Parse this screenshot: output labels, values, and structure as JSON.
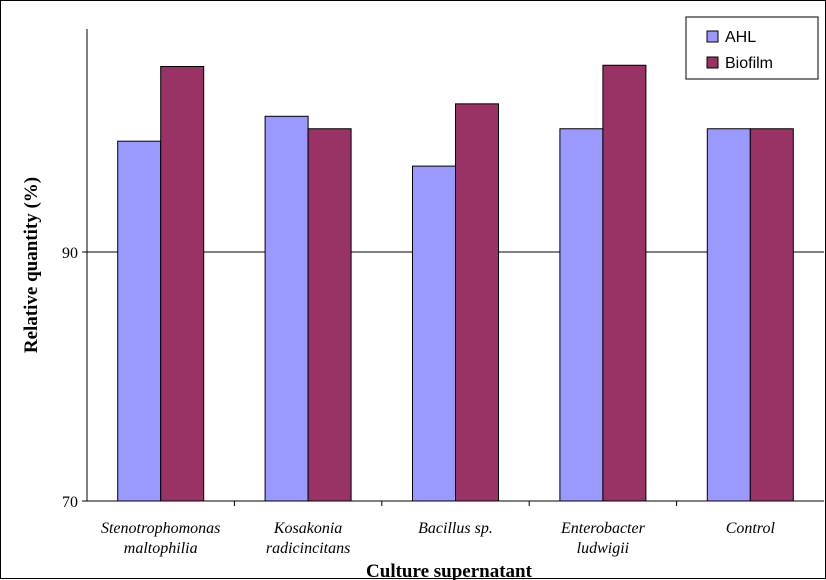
{
  "chart_data": {
    "type": "bar",
    "title": "",
    "xlabel": "Culture supernatant",
    "ylabel": "Relative quantity (%)",
    "ylim": [
      70,
      110
    ],
    "yticks": [
      "70",
      "90"
    ],
    "ytick_values": [
      70,
      90
    ],
    "grid": "horizontal at 90",
    "legend_position": "top-right",
    "categories": [
      [
        "Stenotrophomonas",
        "maltophilia"
      ],
      [
        "Kosakonia",
        "radicincitans"
      ],
      [
        "Bacillus sp."
      ],
      [
        "Enterobacter",
        "ludwigii"
      ],
      [
        "Control"
      ]
    ],
    "series": [
      {
        "name": "AHL",
        "color": "#9999ff",
        "values": [
          98.9,
          100.9,
          96.9,
          99.9,
          99.9
        ]
      },
      {
        "name": "Biofilm",
        "color": "#993366",
        "values": [
          104.9,
          99.9,
          101.9,
          105.0,
          99.9
        ]
      }
    ]
  }
}
